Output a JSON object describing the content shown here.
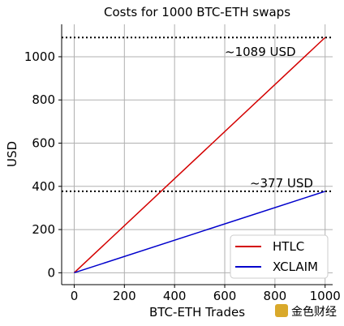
{
  "chart_data": {
    "type": "line",
    "title": "Costs for 1000 BTC-ETH swaps",
    "xlabel": "BTC-ETH Trades",
    "ylabel": "USD",
    "xlim": [
      -50,
      1030
    ],
    "ylim": [
      -55,
      1150
    ],
    "xticks": [
      0,
      200,
      400,
      600,
      800,
      1000
    ],
    "yticks": [
      0,
      200,
      400,
      600,
      800,
      1000
    ],
    "grid": true,
    "legend_position": "bottom-right",
    "series": [
      {
        "name": "HTLC",
        "color": "#d40000",
        "x": [
          0,
          1000
        ],
        "y": [
          0,
          1089
        ]
      },
      {
        "name": "XCLAIM",
        "color": "#0000cc",
        "x": [
          0,
          1000
        ],
        "y": [
          0,
          377
        ]
      }
    ],
    "reference_lines": [
      {
        "y": 1089,
        "label": "~1089 USD",
        "label_x": 600
      },
      {
        "y": 377,
        "label": "~377 USD",
        "label_x": 700
      }
    ]
  },
  "watermark": {
    "text": "金色财经"
  }
}
